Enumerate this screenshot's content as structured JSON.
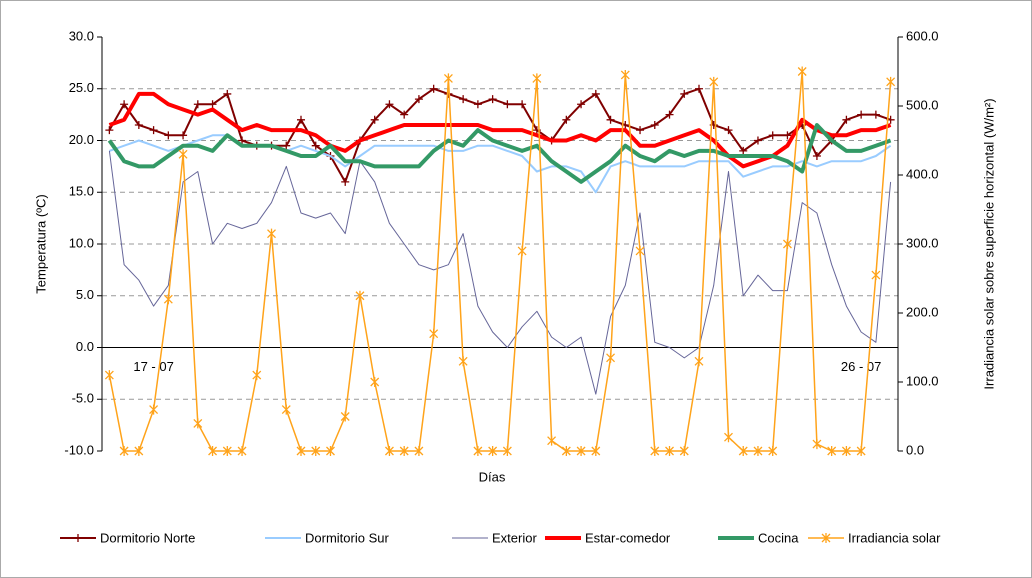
{
  "chart_data": {
    "type": "line",
    "xlabel": "Días",
    "ylabel": "Temperatura (ºC)",
    "y2label": "Irradiancia solar sobre superficie horizontal (W/m²)",
    "categories": [
      null,
      null,
      null,
      "17 - 07",
      null,
      null,
      null,
      null,
      null,
      null,
      null,
      null,
      null,
      null,
      null,
      null,
      null,
      null,
      null,
      null,
      null,
      null,
      null,
      null,
      null,
      null,
      null,
      null,
      null,
      null,
      null,
      null,
      null,
      null,
      null,
      null,
      null,
      null,
      null,
      null,
      null,
      null,
      null,
      null,
      null,
      null,
      null,
      null,
      null,
      null,
      null,
      "26 - 07",
      null,
      null
    ],
    "ylim": [
      -10,
      30
    ],
    "yticks": [
      {
        "value": -10,
        "label": "-10.0"
      },
      {
        "value": -5,
        "label": "-5.0"
      },
      {
        "value": 0,
        "label": "0.0"
      },
      {
        "value": 5,
        "label": "5.0"
      },
      {
        "value": 10,
        "label": "10.0"
      },
      {
        "value": 15,
        "label": "15.0"
      },
      {
        "value": 20,
        "label": "20.0"
      },
      {
        "value": 25,
        "label": "25.0"
      },
      {
        "value": 30,
        "label": "30.0"
      }
    ],
    "y2lim": [
      0,
      600
    ],
    "y2ticks": [
      {
        "value": 0,
        "label": "0.0"
      },
      {
        "value": 100,
        "label": "100.0"
      },
      {
        "value": 200,
        "label": "200.0"
      },
      {
        "value": 300,
        "label": "300.0"
      },
      {
        "value": 400,
        "label": "400.0"
      },
      {
        "value": 500,
        "label": "500.0"
      },
      {
        "value": 600,
        "label": "600.0"
      }
    ],
    "grid": true,
    "legend": "bottom",
    "series": [
      {
        "name": "Dormitorio Norte",
        "color": "#800000",
        "marker": "plus",
        "values": [
          21,
          23.5,
          21.5,
          21,
          20.5,
          20.5,
          23.5,
          23.5,
          24.5,
          20,
          19.5,
          19.5,
          19.5,
          22,
          19.5,
          18.5,
          16,
          20,
          22,
          23.5,
          22.5,
          24,
          25,
          24.5,
          24,
          23.5,
          24,
          23.5,
          23.5,
          21,
          20,
          22,
          23.5,
          24.5,
          22,
          21.5,
          21,
          21.5,
          22.5,
          24.5,
          25,
          21.5,
          21,
          19,
          20,
          20.5,
          20.5,
          21.5,
          18.5,
          20,
          22,
          22.5,
          22.5,
          22
        ]
      },
      {
        "name": "Dormitorio Sur",
        "color": "#99ccff",
        "values": [
          19,
          19.5,
          20,
          19.5,
          19,
          19.5,
          20,
          20.5,
          20.5,
          19.5,
          19.5,
          19.5,
          19,
          19.5,
          19,
          18.5,
          17.5,
          18.5,
          19.5,
          19.5,
          19.5,
          19.5,
          19.5,
          19,
          19,
          19.5,
          19.5,
          19,
          18.5,
          17,
          17.5,
          17.5,
          17,
          15,
          17.5,
          18,
          17.5,
          17.5,
          17.5,
          17.5,
          18,
          18,
          18,
          16.5,
          17,
          17.5,
          17.5,
          18,
          17.5,
          18,
          18,
          18,
          18.5,
          19.5
        ]
      },
      {
        "name": "Exterior",
        "color": "#666699",
        "values": [
          19,
          8,
          6.5,
          4,
          6,
          16,
          17,
          10,
          12,
          11.5,
          12,
          14,
          17.5,
          13,
          12.5,
          13,
          11,
          18,
          16,
          12,
          10,
          8,
          7.5,
          8,
          11,
          4,
          1.5,
          0,
          2,
          3.5,
          1,
          0,
          1,
          -4.5,
          3,
          6,
          13,
          0.5,
          0,
          -1,
          0,
          6,
          17,
          5,
          7,
          5.5,
          5.5,
          14,
          13,
          8,
          4,
          1.5,
          0.5,
          16
        ]
      },
      {
        "name": "Estar-comedor",
        "color": "#ff0000",
        "values": [
          21.5,
          22,
          24.5,
          24.5,
          23.5,
          23,
          22.5,
          23,
          22,
          21,
          21.5,
          21,
          21,
          21,
          20.5,
          19.5,
          19,
          20,
          20.5,
          21,
          21.5,
          21.5,
          21.5,
          21.5,
          21.5,
          21.5,
          21,
          21,
          21,
          20.5,
          20,
          20,
          20.5,
          20,
          21,
          21,
          19.5,
          19.5,
          20,
          20.5,
          21,
          20,
          18.5,
          17.5,
          18,
          18.5,
          19.5,
          22,
          21,
          20.5,
          20.5,
          21,
          21,
          21.5
        ]
      },
      {
        "name": "Cocina",
        "color": "#339966",
        "values": [
          20,
          18,
          17.5,
          17.5,
          18.5,
          19.5,
          19.5,
          19,
          20.5,
          19.5,
          19.5,
          19.5,
          19,
          18.5,
          18.5,
          19.5,
          18,
          18,
          17.5,
          17.5,
          17.5,
          17.5,
          19,
          20,
          19.5,
          21,
          20,
          19.5,
          19,
          19.5,
          18,
          17,
          16,
          17,
          18,
          19.5,
          18.5,
          18,
          19,
          18.5,
          19,
          19,
          18.5,
          18.5,
          18.5,
          18.5,
          18,
          17,
          21.5,
          20,
          19,
          19,
          19.5,
          20
        ]
      },
      {
        "name": "Irradiancia solar",
        "color": "#ffa31a",
        "marker": "star",
        "axis": "y2",
        "values": [
          110,
          0,
          0,
          60,
          220,
          430,
          40,
          0,
          0,
          0,
          110,
          315,
          60,
          0,
          0,
          0,
          50,
          225,
          100,
          0,
          0,
          0,
          170,
          540,
          130,
          0,
          0,
          0,
          290,
          540,
          15,
          0,
          0,
          0,
          135,
          545,
          290,
          0,
          0,
          0,
          130,
          535,
          20,
          0,
          0,
          0,
          300,
          550,
          10,
          0,
          0,
          0,
          255,
          535
        ]
      }
    ]
  }
}
